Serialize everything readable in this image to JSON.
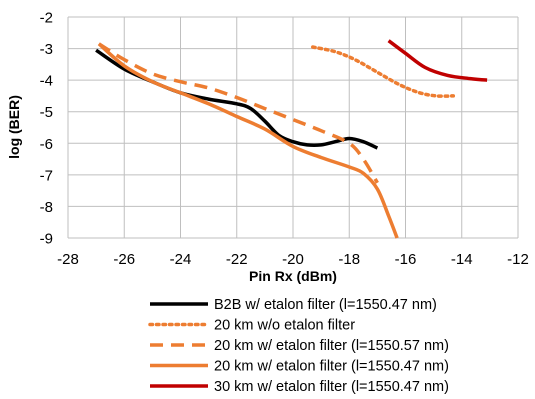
{
  "chart_data": {
    "type": "line",
    "title": "",
    "xlabel": "Pin Rx (dBm)",
    "ylabel": "log (BER)",
    "xlim": [
      -28,
      -12
    ],
    "ylim": [
      -9,
      -2
    ],
    "x_ticks": [
      "-28",
      "-26",
      "-24",
      "-22",
      "-20",
      "-18",
      "-16",
      "-14",
      "-12"
    ],
    "y_ticks": [
      "-2",
      "-3",
      "-4",
      "-5",
      "-6",
      "-7",
      "-8",
      "-9"
    ],
    "grid": true,
    "legend_position": "bottom",
    "series": [
      {
        "name": "B2B w/ etalon filter (l=1550.47 nm)",
        "color": "#000000",
        "style": "solid",
        "points": [
          [
            -27.0,
            -3.05
          ],
          [
            -26.0,
            -3.65
          ],
          [
            -25.0,
            -4.05
          ],
          [
            -24.0,
            -4.4
          ],
          [
            -23.0,
            -4.6
          ],
          [
            -22.0,
            -4.75
          ],
          [
            -21.5,
            -4.9
          ],
          [
            -21.0,
            -5.3
          ],
          [
            -20.5,
            -5.75
          ],
          [
            -20.0,
            -5.95
          ],
          [
            -19.5,
            -6.05
          ],
          [
            -19.0,
            -6.05
          ],
          [
            -18.5,
            -5.95
          ],
          [
            -18.0,
            -5.85
          ],
          [
            -17.5,
            -5.95
          ],
          [
            -17.0,
            -6.15
          ]
        ]
      },
      {
        "name": "20 km w/o etalon filter",
        "color": "#ed7d31",
        "style": "dotted",
        "points": [
          [
            -19.3,
            -2.95
          ],
          [
            -18.5,
            -3.1
          ],
          [
            -17.8,
            -3.35
          ],
          [
            -17.0,
            -3.75
          ],
          [
            -16.2,
            -4.15
          ],
          [
            -15.5,
            -4.4
          ],
          [
            -14.9,
            -4.5
          ],
          [
            -14.3,
            -4.5
          ]
        ]
      },
      {
        "name": "20 km w/ etalon filter (l=1550.57 nm)",
        "color": "#ed7d31",
        "style": "dashed",
        "points": [
          [
            -26.9,
            -2.85
          ],
          [
            -26.0,
            -3.35
          ],
          [
            -25.0,
            -3.8
          ],
          [
            -24.0,
            -4.05
          ],
          [
            -23.0,
            -4.25
          ],
          [
            -22.0,
            -4.55
          ],
          [
            -21.0,
            -4.9
          ],
          [
            -20.0,
            -5.25
          ],
          [
            -19.0,
            -5.6
          ],
          [
            -18.0,
            -6.0
          ],
          [
            -17.5,
            -6.5
          ],
          [
            -17.0,
            -7.25
          ]
        ]
      },
      {
        "name": "20 km w/ etalon filter (l=1550.47 nm)",
        "color": "#ed7d31",
        "style": "solid",
        "points": [
          [
            -26.9,
            -2.85
          ],
          [
            -26.0,
            -3.55
          ],
          [
            -25.0,
            -4.05
          ],
          [
            -24.0,
            -4.4
          ],
          [
            -23.0,
            -4.75
          ],
          [
            -22.0,
            -5.15
          ],
          [
            -21.0,
            -5.55
          ],
          [
            -20.0,
            -6.1
          ],
          [
            -19.0,
            -6.45
          ],
          [
            -18.0,
            -6.75
          ],
          [
            -17.5,
            -6.95
          ],
          [
            -17.0,
            -7.45
          ],
          [
            -16.6,
            -8.3
          ],
          [
            -16.3,
            -9.0
          ]
        ]
      },
      {
        "name": "30 km w/ etalon filter (l=1550.47 nm)",
        "color": "#c00000",
        "style": "solid",
        "points": [
          [
            -16.6,
            -2.75
          ],
          [
            -16.0,
            -3.15
          ],
          [
            -15.3,
            -3.6
          ],
          [
            -14.5,
            -3.85
          ],
          [
            -13.7,
            -3.95
          ],
          [
            -13.1,
            -4.0
          ]
        ]
      }
    ]
  }
}
